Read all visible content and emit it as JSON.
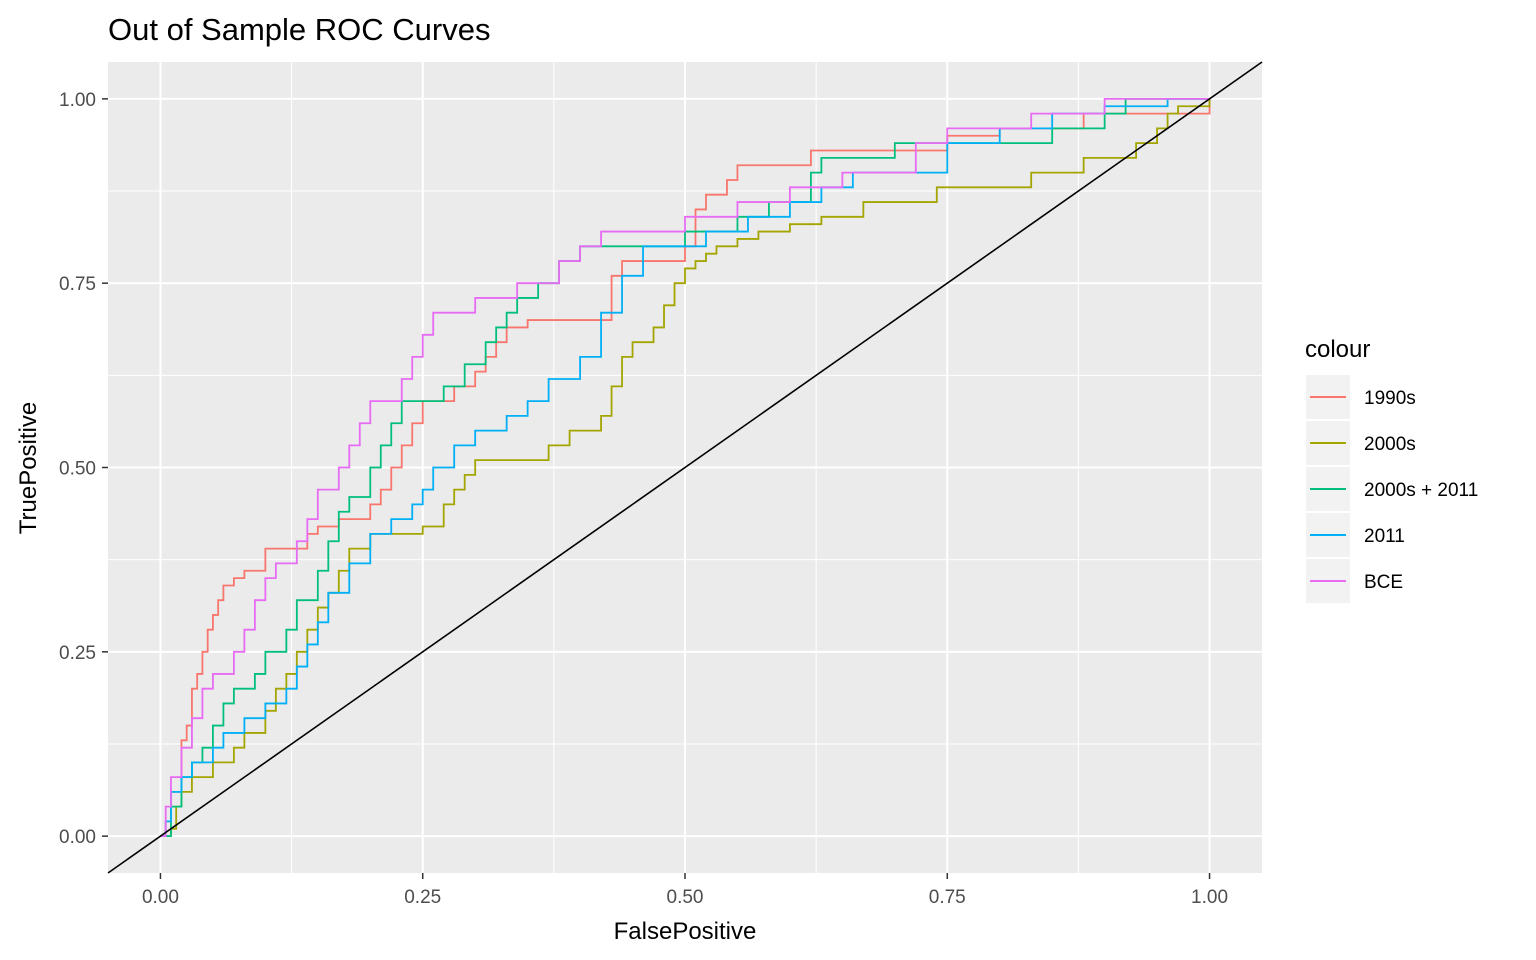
{
  "chart_data": {
    "type": "line",
    "title": "Out of Sample ROC Curves",
    "xlabel": "FalsePositive",
    "ylabel": "TruePositive",
    "xlim": [
      -0.05,
      1.05
    ],
    "ylim": [
      -0.05,
      1.05
    ],
    "x_ticks": [
      "0.00",
      "0.25",
      "0.50",
      "0.75",
      "1.00"
    ],
    "y_ticks": [
      "0.00",
      "0.25",
      "0.50",
      "0.75",
      "1.00"
    ],
    "grid": true,
    "legend": {
      "title": "colour",
      "placement": "right"
    },
    "reference_line": {
      "slope": 1,
      "intercept": 0,
      "color": "#000000"
    },
    "series": [
      {
        "name": "1990s",
        "color": "#F8766D",
        "x": [
          0,
          0.005,
          0.01,
          0.02,
          0.025,
          0.03,
          0.035,
          0.04,
          0.045,
          0.05,
          0.055,
          0.06,
          0.07,
          0.08,
          0.1,
          0.14,
          0.15,
          0.17,
          0.2,
          0.21,
          0.22,
          0.23,
          0.24,
          0.25,
          0.26,
          0.28,
          0.3,
          0.31,
          0.32,
          0.33,
          0.35,
          0.42,
          0.43,
          0.44,
          0.5,
          0.51,
          0.52,
          0.54,
          0.55,
          0.6,
          0.62,
          0.75,
          0.8,
          0.88,
          0.97,
          1.0
        ],
        "y": [
          0,
          0.02,
          0.06,
          0.13,
          0.15,
          0.2,
          0.22,
          0.25,
          0.28,
          0.3,
          0.32,
          0.34,
          0.35,
          0.36,
          0.39,
          0.41,
          0.42,
          0.43,
          0.45,
          0.47,
          0.5,
          0.53,
          0.56,
          0.59,
          0.59,
          0.61,
          0.63,
          0.65,
          0.67,
          0.69,
          0.7,
          0.7,
          0.76,
          0.78,
          0.8,
          0.85,
          0.87,
          0.89,
          0.91,
          0.91,
          0.93,
          0.95,
          0.96,
          0.98,
          0.98,
          1.0
        ]
      },
      {
        "name": "2000s",
        "color": "#A3A500",
        "x": [
          0,
          0.01,
          0.015,
          0.02,
          0.03,
          0.04,
          0.05,
          0.07,
          0.08,
          0.1,
          0.11,
          0.12,
          0.13,
          0.14,
          0.15,
          0.16,
          0.17,
          0.18,
          0.2,
          0.22,
          0.23,
          0.25,
          0.27,
          0.28,
          0.29,
          0.3,
          0.31,
          0.37,
          0.39,
          0.42,
          0.43,
          0.44,
          0.45,
          0.47,
          0.48,
          0.49,
          0.5,
          0.51,
          0.52,
          0.53,
          0.55,
          0.57,
          0.6,
          0.63,
          0.67,
          0.74,
          0.83,
          0.88,
          0.93,
          0.95,
          0.96,
          0.97,
          1.0
        ],
        "y": [
          0,
          0.01,
          0.04,
          0.06,
          0.08,
          0.08,
          0.1,
          0.12,
          0.14,
          0.17,
          0.2,
          0.22,
          0.25,
          0.28,
          0.31,
          0.33,
          0.36,
          0.39,
          0.41,
          0.41,
          0.41,
          0.42,
          0.45,
          0.47,
          0.49,
          0.51,
          0.51,
          0.53,
          0.55,
          0.57,
          0.61,
          0.65,
          0.67,
          0.69,
          0.72,
          0.75,
          0.77,
          0.78,
          0.79,
          0.8,
          0.81,
          0.82,
          0.83,
          0.84,
          0.86,
          0.88,
          0.9,
          0.92,
          0.94,
          0.96,
          0.98,
          0.99,
          1.0
        ]
      },
      {
        "name": "2000s + 2011",
        "color": "#00BF7D",
        "x": [
          0,
          0.01,
          0.02,
          0.03,
          0.04,
          0.05,
          0.06,
          0.07,
          0.09,
          0.1,
          0.12,
          0.13,
          0.15,
          0.16,
          0.17,
          0.18,
          0.2,
          0.21,
          0.22,
          0.23,
          0.25,
          0.27,
          0.29,
          0.31,
          0.32,
          0.33,
          0.34,
          0.36,
          0.38,
          0.4,
          0.42,
          0.44,
          0.5,
          0.52,
          0.55,
          0.58,
          0.62,
          0.63,
          0.7,
          0.85,
          0.9,
          0.92,
          1.0
        ],
        "y": [
          0,
          0.04,
          0.08,
          0.1,
          0.12,
          0.15,
          0.18,
          0.2,
          0.22,
          0.25,
          0.28,
          0.32,
          0.36,
          0.4,
          0.44,
          0.46,
          0.5,
          0.53,
          0.56,
          0.59,
          0.59,
          0.61,
          0.64,
          0.67,
          0.69,
          0.71,
          0.73,
          0.75,
          0.78,
          0.8,
          0.8,
          0.8,
          0.82,
          0.82,
          0.84,
          0.86,
          0.9,
          0.92,
          0.94,
          0.96,
          0.98,
          1.0,
          1.0
        ]
      },
      {
        "name": "2011",
        "color": "#00B0F6",
        "x": [
          0,
          0.005,
          0.01,
          0.02,
          0.03,
          0.05,
          0.06,
          0.08,
          0.1,
          0.12,
          0.13,
          0.14,
          0.15,
          0.16,
          0.18,
          0.2,
          0.22,
          0.24,
          0.25,
          0.26,
          0.28,
          0.3,
          0.33,
          0.35,
          0.37,
          0.4,
          0.42,
          0.44,
          0.46,
          0.52,
          0.56,
          0.6,
          0.63,
          0.66,
          0.75,
          0.8,
          0.85,
          0.9,
          0.96,
          1.0
        ],
        "y": [
          0,
          0.02,
          0.06,
          0.08,
          0.1,
          0.12,
          0.14,
          0.16,
          0.18,
          0.2,
          0.23,
          0.26,
          0.29,
          0.33,
          0.37,
          0.41,
          0.43,
          0.45,
          0.47,
          0.5,
          0.53,
          0.55,
          0.57,
          0.59,
          0.62,
          0.65,
          0.71,
          0.76,
          0.8,
          0.82,
          0.84,
          0.86,
          0.88,
          0.9,
          0.94,
          0.96,
          0.98,
          0.99,
          1.0,
          1.0
        ]
      },
      {
        "name": "BCE",
        "color": "#E76BF3",
        "x": [
          0,
          0.005,
          0.01,
          0.02,
          0.03,
          0.04,
          0.05,
          0.07,
          0.08,
          0.09,
          0.1,
          0.11,
          0.13,
          0.14,
          0.15,
          0.17,
          0.18,
          0.19,
          0.2,
          0.23,
          0.24,
          0.25,
          0.26,
          0.3,
          0.34,
          0.38,
          0.4,
          0.42,
          0.5,
          0.55,
          0.6,
          0.65,
          0.72,
          0.75,
          0.83,
          0.9,
          1.0
        ],
        "y": [
          0,
          0.04,
          0.08,
          0.12,
          0.16,
          0.2,
          0.22,
          0.25,
          0.28,
          0.32,
          0.35,
          0.37,
          0.4,
          0.43,
          0.47,
          0.5,
          0.53,
          0.56,
          0.59,
          0.62,
          0.65,
          0.68,
          0.71,
          0.73,
          0.75,
          0.78,
          0.8,
          0.82,
          0.84,
          0.86,
          0.88,
          0.9,
          0.94,
          0.96,
          0.98,
          1.0,
          1.0
        ]
      }
    ]
  }
}
